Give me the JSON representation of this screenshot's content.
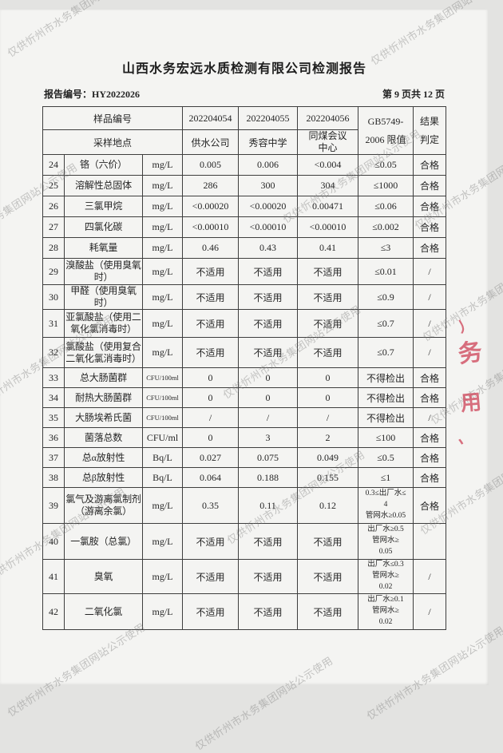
{
  "page": {
    "title": "山西水务宏远水质检测有限公司检测报告",
    "report_no": "报告编号：HY2022026",
    "page_indicator": "第 9 页共 12 页"
  },
  "watermark": {
    "text": "仅供忻州市水务集团网站公示使用"
  },
  "stamp": {
    "fragments": [
      "丿",
      "务",
      "用",
      "、"
    ]
  },
  "table": {
    "header": {
      "sample_id_label": "样品编号",
      "location_label": "采样地点",
      "sample_ids": [
        "202204054",
        "202204055",
        "202204056"
      ],
      "locations": [
        "供水公司",
        "秀容中学",
        "同煤会议\n中心"
      ],
      "limit_header": "GB5749-\n2006 限值",
      "result_header": "结果\n判定"
    },
    "rows": [
      {
        "no": "24",
        "name": "铬（六价）",
        "unit": "mg/L",
        "values": [
          "0.005",
          "0.006",
          "<0.004"
        ],
        "limit": "≤0.05",
        "result": "合格"
      },
      {
        "no": "25",
        "name": "溶解性总固体",
        "unit": "mg/L",
        "values": [
          "286",
          "300",
          "304"
        ],
        "limit": "≤1000",
        "result": "合格"
      },
      {
        "no": "26",
        "name": "三氯甲烷",
        "unit": "mg/L",
        "values": [
          "<0.00020",
          "<0.00020",
          "0.00471"
        ],
        "limit": "≤0.06",
        "result": "合格"
      },
      {
        "no": "27",
        "name": "四氯化碳",
        "unit": "mg/L",
        "values": [
          "<0.00010",
          "<0.00010",
          "<0.00010"
        ],
        "limit": "≤0.002",
        "result": "合格"
      },
      {
        "no": "28",
        "name": "耗氧量",
        "unit": "mg/L",
        "values": [
          "0.46",
          "0.43",
          "0.41"
        ],
        "limit": "≤3",
        "result": "合格"
      },
      {
        "no": "29",
        "name": "溴酸盐（使用臭氧时）",
        "unit": "mg/L",
        "values": [
          "不适用",
          "不适用",
          "不适用"
        ],
        "limit": "≤0.01",
        "result": "/"
      },
      {
        "no": "30",
        "name": "甲醛（使用臭氧时）",
        "unit": "mg/L",
        "values": [
          "不适用",
          "不适用",
          "不适用"
        ],
        "limit": "≤0.9",
        "result": "/"
      },
      {
        "no": "31",
        "name": "亚氯酸盐（使用二氧化氯消毒时）",
        "unit": "mg/L",
        "values": [
          "不适用",
          "不适用",
          "不适用"
        ],
        "limit": "≤0.7",
        "result": "/"
      },
      {
        "no": "32",
        "name": "氯酸盐（使用复合二氧化氯消毒时）",
        "unit": "mg/L",
        "values": [
          "不适用",
          "不适用",
          "不适用"
        ],
        "limit": "≤0.7",
        "result": "/"
      },
      {
        "no": "33",
        "name": "总大肠菌群",
        "unit": "CFU/100ml",
        "values": [
          "0",
          "0",
          "0"
        ],
        "limit": "不得检出",
        "result": "合格"
      },
      {
        "no": "34",
        "name": "耐热大肠菌群",
        "unit": "CFU/100ml",
        "values": [
          "0",
          "0",
          "0"
        ],
        "limit": "不得检出",
        "result": "合格"
      },
      {
        "no": "35",
        "name": "大肠埃希氏菌",
        "unit": "CFU/100ml",
        "values": [
          "/",
          "/",
          "/"
        ],
        "limit": "不得检出",
        "result": "/"
      },
      {
        "no": "36",
        "name": "菌落总数",
        "unit": "CFU/ml",
        "values": [
          "0",
          "3",
          "2"
        ],
        "limit": "≤100",
        "result": "合格"
      },
      {
        "no": "37",
        "name": "总α放射性",
        "unit": "Bq/L",
        "values": [
          "0.027",
          "0.075",
          "0.049"
        ],
        "limit": "≤0.5",
        "result": "合格"
      },
      {
        "no": "38",
        "name": "总β放射性",
        "unit": "Bq/L",
        "values": [
          "0.064",
          "0.188",
          "0.155"
        ],
        "limit": "≤1",
        "result": "合格"
      },
      {
        "no": "39",
        "name": "氯气及游离氯制剂（游离余氯）",
        "unit": "mg/L",
        "values": [
          "0.35",
          "0.11",
          "0.12"
        ],
        "limit": "0.3≤出厂水≤\n4\n管网水≥0.05",
        "result": "合格"
      },
      {
        "no": "40",
        "name": "一氯胺（总氯）",
        "unit": "mg/L",
        "values": [
          "不适用",
          "不适用",
          "不适用"
        ],
        "limit": "出厂水≥0.5\n管网水≥\n0.05",
        "result": ""
      },
      {
        "no": "41",
        "name": "臭氧",
        "unit": "mg/L",
        "values": [
          "不适用",
          "不适用",
          "不适用"
        ],
        "limit": "出厂水≤0.3\n管网水≥\n0.02",
        "result": "/"
      },
      {
        "no": "42",
        "name": "二氧化氯",
        "unit": "mg/L",
        "values": [
          "不适用",
          "不适用",
          "不适用"
        ],
        "limit": "出厂水≥0.1\n管网水≥\n0.02",
        "result": "/"
      }
    ]
  }
}
